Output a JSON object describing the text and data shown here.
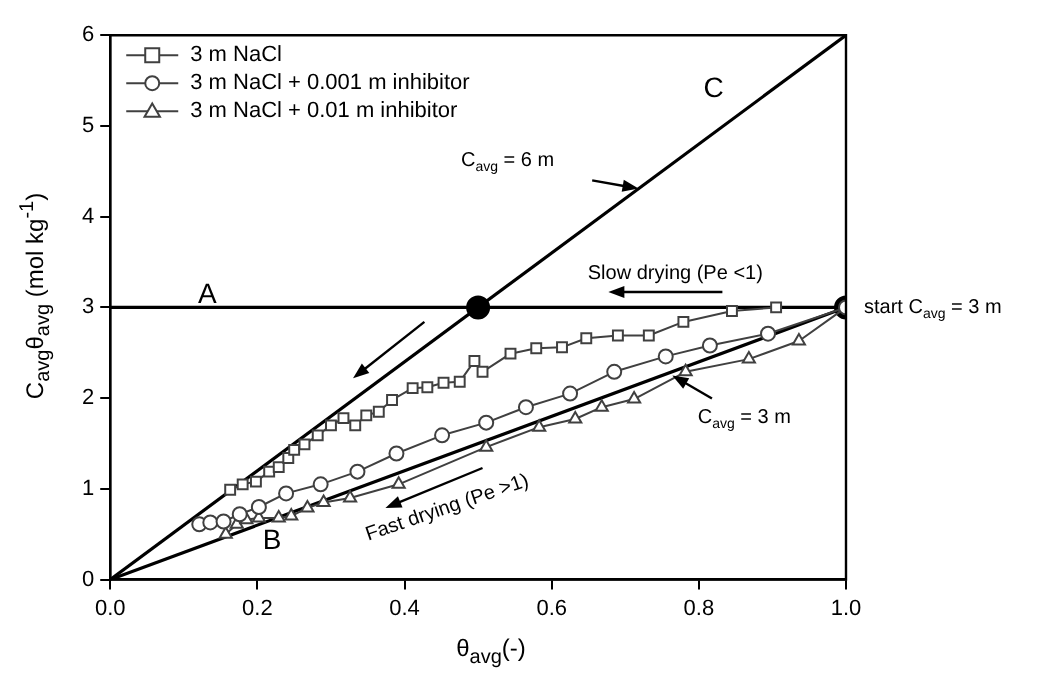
{
  "chart_data": {
    "type": "line",
    "xlabel": "θ$_{avg}$(-)",
    "ylabel": "C$_{avg}$θ$_{avg}$ (mol kg$^{-1}$)",
    "xlim": [
      0,
      1
    ],
    "ylim": [
      0,
      6
    ],
    "xticks": [
      {
        "value": 0,
        "label": "0.0"
      },
      {
        "value": 0.2,
        "label": "0.2"
      },
      {
        "value": 0.4,
        "label": "0.4"
      },
      {
        "value": 0.6,
        "label": "0.6"
      },
      {
        "value": 0.8,
        "label": "0.8"
      },
      {
        "value": 1,
        "label": "1.0"
      }
    ],
    "yticks": [
      0,
      1,
      2,
      3,
      4,
      5,
      6
    ],
    "grid": false,
    "legend": "top left",
    "series": [
      {
        "name": "3 m NaCl",
        "color": "#404040",
        "marker": "square",
        "x": [
          0.163,
          0.18,
          0.198,
          0.216,
          0.229,
          0.242,
          0.25,
          0.264,
          0.282,
          0.3,
          0.317,
          0.333,
          0.348,
          0.365,
          0.383,
          0.411,
          0.431,
          0.453,
          0.475,
          0.495,
          0.506,
          0.544,
          0.579,
          0.614,
          0.647,
          0.69,
          0.732,
          0.779,
          0.845,
          0.905
        ],
        "values": [
          0.99,
          1.05,
          1.08,
          1.19,
          1.24,
          1.34,
          1.43,
          1.49,
          1.59,
          1.7,
          1.78,
          1.7,
          1.81,
          1.85,
          1.98,
          2.11,
          2.12,
          2.17,
          2.18,
          2.41,
          2.29,
          2.49,
          2.55,
          2.56,
          2.66,
          2.69,
          2.69,
          2.84,
          2.96,
          3.0
        ]
      },
      {
        "name": "3 m NaCl + 0.001 m inhibitor",
        "color": "#404040",
        "marker": "circle",
        "x": [
          0.121,
          0.136,
          0.154,
          0.176,
          0.202,
          0.239,
          0.286,
          0.336,
          0.389,
          0.451,
          0.511,
          0.565,
          0.625,
          0.685,
          0.755,
          0.815,
          0.894,
          1
        ],
        "values": [
          0.61,
          0.63,
          0.64,
          0.72,
          0.8,
          0.95,
          1.05,
          1.19,
          1.39,
          1.59,
          1.73,
          1.9,
          2.05,
          2.29,
          2.46,
          2.58,
          2.71,
          3.0
        ]
      },
      {
        "name": "3 m NaCl + 0.01 m inhibitor",
        "color": "#404040",
        "marker": "triangle",
        "x": [
          0.157,
          0.172,
          0.185,
          0.202,
          0.229,
          0.246,
          0.268,
          0.29,
          0.326,
          0.392,
          0.511,
          0.583,
          0.632,
          0.668,
          0.712,
          0.782,
          0.868,
          0.936,
          1
        ],
        "values": [
          0.5,
          0.61,
          0.66,
          0.68,
          0.68,
          0.7,
          0.79,
          0.85,
          0.9,
          1.05,
          1.46,
          1.68,
          1.77,
          1.9,
          1.99,
          2.29,
          2.43,
          2.63,
          3.0
        ]
      },
      {
        "color": "#000000",
        "marker": "none",
        "x": [
          0,
          1
        ],
        "values": [
          0,
          6
        ]
      },
      {
        "color": "#000000",
        "marker": "none",
        "x": [
          0,
          1
        ],
        "values": [
          0,
          3
        ]
      },
      {
        "color": "#000000",
        "marker": "none",
        "x": [
          0,
          1
        ],
        "values": [
          3,
          3
        ]
      },
      {
        "type": "scatter",
        "color": "#000000",
        "marker": "circle",
        "x": [
          0.5,
          1
        ],
        "values": [
          3,
          3
        ]
      }
    ],
    "annotations": [
      "A",
      "B",
      "C",
      "C$_{avg}$ = 6 m",
      "Slow drying (Pe <1)",
      "Fast drying (Pe >1)",
      {
        "text": "C$_{avg}$ = 3 m",
        "x": 0.764,
        "y": 2.25
      },
      {
        "text": "start C$_{avg}$ = 3 m",
        "x": 1,
        "y": 3
      }
    ]
  }
}
